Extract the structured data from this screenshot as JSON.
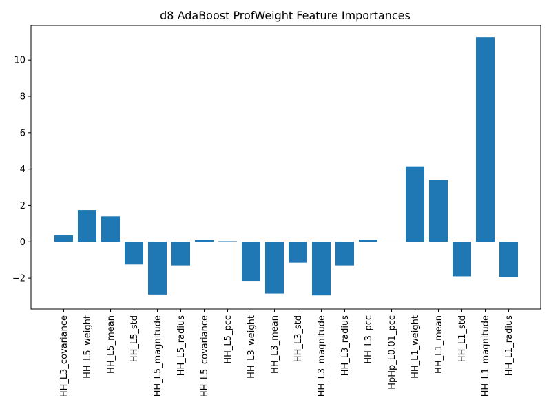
{
  "chart_data": {
    "type": "bar",
    "title": "d8 AdaBoost ProfWeight Feature Importances",
    "xlabel": "",
    "ylabel": "",
    "categories": [
      "HH_L3_covariance",
      "HH_L5_weight",
      "HH_L5_mean",
      "HH_L5_std",
      "HH_L5_magnitude",
      "HH_L5_radius",
      "HH_L5_covariance",
      "HH_L5_pcc",
      "HH_L3_weight",
      "HH_L3_mean",
      "HH_L3_std",
      "HH_L3_magnitude",
      "HH_L3_radius",
      "HH_L3_pcc",
      "HpHp_L0.01_pcc",
      "HH_L1_weight",
      "HH_L1_mean",
      "HH_L1_std",
      "HH_L1_magnitude",
      "HH_L1_radius"
    ],
    "values": [
      0.35,
      1.75,
      1.4,
      -1.25,
      -2.9,
      -1.3,
      0.1,
      0.03,
      -2.15,
      -2.85,
      -1.15,
      -2.95,
      -1.3,
      0.12,
      0.0,
      4.15,
      3.4,
      -1.9,
      11.25,
      -1.95
    ],
    "ylim": [
      -3.7,
      11.9
    ],
    "yticks": [
      -2,
      0,
      2,
      4,
      6,
      8,
      10
    ],
    "ytick_labels": [
      "−2",
      "0",
      "2",
      "4",
      "6",
      "8",
      "10"
    ],
    "bar_color": "#1f77b4",
    "grid": false,
    "legend": "none"
  }
}
